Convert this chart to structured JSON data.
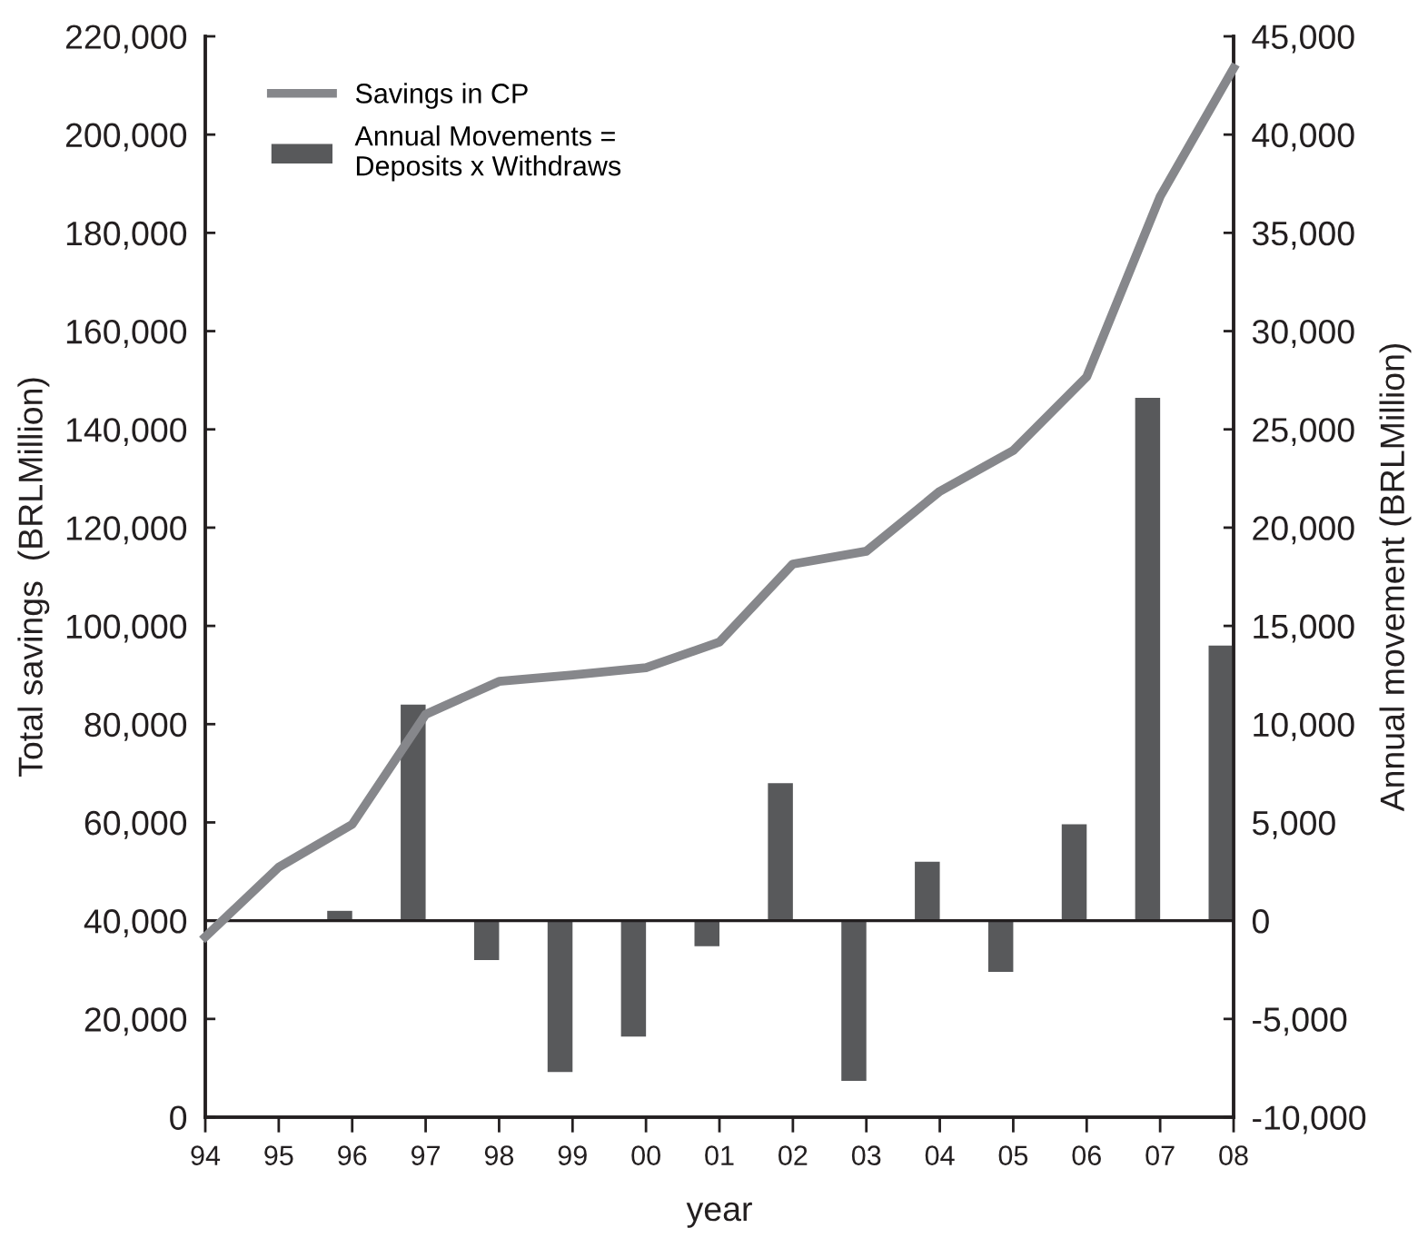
{
  "chart_data": {
    "type": "bar",
    "xlabel": "year",
    "ylabel": "Total savings  (BRLMillion)",
    "y2label": "Annual movement (BRLMillion)",
    "categories": [
      "94",
      "95",
      "96",
      "97",
      "98",
      "99",
      "00",
      "01",
      "02",
      "03",
      "04",
      "05",
      "06",
      "07",
      "08"
    ],
    "series": [
      {
        "name": "Savings in CP",
        "type": "line",
        "color": "#86878b",
        "values": [
          36700,
          50900,
          59600,
          82000,
          88700,
          90000,
          91500,
          96700,
          112600,
          115200,
          127400,
          135700,
          150700,
          187400,
          213500
        ]
      },
      {
        "name": "Annual Movements =\nDeposits x Withdraws",
        "axis": "y2",
        "color": "#58595b",
        "values": [
          null,
          null,
          500,
          11000,
          -2000,
          -7700,
          -5900,
          -1300,
          7000,
          -8150,
          3000,
          -2600,
          4900,
          26600,
          14000
        ]
      }
    ],
    "ylim": [
      0,
      220000
    ],
    "yticks": [
      {
        "value": 0,
        "label": "0"
      },
      {
        "value": 20000,
        "label": "20,000"
      },
      {
        "value": 40000,
        "label": "40,000"
      },
      {
        "value": 60000,
        "label": "60,000"
      },
      {
        "value": 80000,
        "label": "80,000"
      },
      {
        "value": 100000,
        "label": "100,000"
      },
      {
        "value": 120000,
        "label": "120,000"
      },
      {
        "value": 140000,
        "label": "140,000"
      },
      {
        "value": 160000,
        "label": "160,000"
      },
      {
        "value": 180000,
        "label": "180,000"
      },
      {
        "value": 200000,
        "label": "200,000"
      },
      {
        "value": 220000,
        "label": "220,000"
      }
    ],
    "y2lim": [
      -10000,
      45000
    ],
    "y2ticks": [
      {
        "value": -10000,
        "label": "-10,000"
      },
      {
        "value": -5000,
        "label": "-5,000"
      },
      0,
      {
        "value": 5000,
        "label": "5,000"
      },
      {
        "value": 10000,
        "label": "10,000"
      },
      {
        "value": 15000,
        "label": "15,000"
      },
      {
        "value": 20000,
        "label": "20,000"
      },
      {
        "value": 25000,
        "label": "25,000"
      },
      {
        "value": 30000,
        "label": "30,000"
      },
      {
        "value": 35000,
        "label": "35,000"
      },
      {
        "value": 40000,
        "label": "40,000"
      },
      {
        "value": 45000,
        "label": "45,000"
      }
    ],
    "ref_lines": [
      {
        "axis": "y2",
        "value": 0,
        "color": "#231f20"
      }
    ],
    "legend": "top left",
    "grid": false
  }
}
